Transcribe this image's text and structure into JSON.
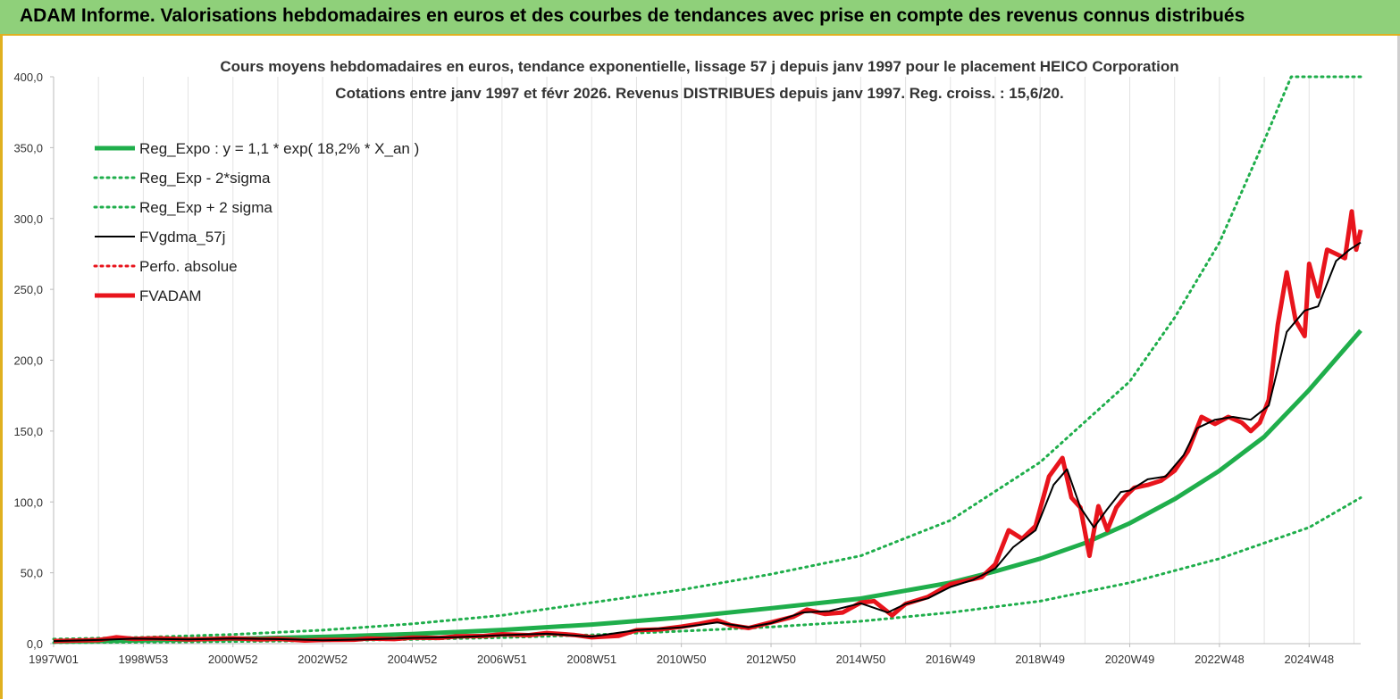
{
  "page_title": "ADAM Informe. Valorisations hebdomadaires en euros et des courbes de tendances avec prise en compte des revenus connus distribués",
  "colors": {
    "green": "#1fae4b",
    "black": "#000000",
    "red": "#e8141c",
    "header_bg": "#8fd07a"
  },
  "chart_data": {
    "type": "line",
    "title": "Cours moyens hebdomadaires en euros, tendance exponentielle, lissage 57 j depuis janv 1997 pour le placement HEICO Corporation",
    "subtitle": "Cotations entre janv 1997 et févr 2026. Revenus DISTRIBUES depuis janv 1997. Reg. croiss. : 15,6/20.",
    "xlabel": "",
    "ylabel": "",
    "x_range": [
      1997.0,
      2026.15
    ],
    "ylim": [
      0,
      400
    ],
    "y_ticks": [
      "0,0",
      "50,0",
      "100,0",
      "150,0",
      "200,0",
      "250,0",
      "300,0",
      "350,0",
      "400,0"
    ],
    "x_tick_labels": [
      {
        "label": "1997W01",
        "x": 1997.0
      },
      {
        "label": "1998W53",
        "x": 1999.0
      },
      {
        "label": "2000W52",
        "x": 2001.0
      },
      {
        "label": "2002W52",
        "x": 2003.0
      },
      {
        "label": "2004W52",
        "x": 2005.0
      },
      {
        "label": "2006W51",
        "x": 2007.0
      },
      {
        "label": "2008W51",
        "x": 2009.0
      },
      {
        "label": "2010W50",
        "x": 2011.0
      },
      {
        "label": "2012W50",
        "x": 2013.0
      },
      {
        "label": "2014W50",
        "x": 2015.0
      },
      {
        "label": "2016W49",
        "x": 2017.0
      },
      {
        "label": "2018W49",
        "x": 2019.0
      },
      {
        "label": "2020W49",
        "x": 2021.0
      },
      {
        "label": "2022W48",
        "x": 2023.0
      },
      {
        "label": "2024W48",
        "x": 2025.0
      }
    ],
    "grid": "vertical",
    "legend_position": "top-left",
    "legend": [
      {
        "name": "Reg_Expo : y = 1,1 * exp( 18,2% *  X_an )",
        "color": "#1fae4b",
        "style": "solid-thick"
      },
      {
        "name": "Reg_Exp - 2*sigma",
        "color": "#1fae4b",
        "style": "dotted"
      },
      {
        "name": "Reg_Exp + 2 sigma",
        "color": "#1fae4b",
        "style": "dotted"
      },
      {
        "name": "FVgdma_57j",
        "color": "#000000",
        "style": "solid"
      },
      {
        "name": "Perfo. absolue",
        "color": "#e8141c",
        "style": "dotted"
      },
      {
        "name": "FVADAM",
        "color": "#e8141c",
        "style": "solid-thick"
      }
    ],
    "series": [
      {
        "name": "Reg_Expo : y = 1,1 * exp( 18,2% *  X_an )",
        "x": [
          1997.0,
          1999.0,
          2001.0,
          2003.0,
          2005.0,
          2007.0,
          2009.0,
          2011.0,
          2013.0,
          2015.0,
          2017.0,
          2018.0,
          2019.0,
          2020.0,
          2021.0,
          2022.0,
          2023.0,
          2024.0,
          2025.0,
          2026.15
        ],
        "y": [
          1.5,
          2.3,
          3.4,
          4.8,
          6.8,
          9.7,
          13.5,
          18.5,
          25.0,
          31.8,
          43.0,
          51.0,
          60.0,
          71.0,
          85.0,
          102.0,
          122.0,
          146.0,
          179.0,
          221.0
        ]
      },
      {
        "name": "Reg_Exp - 2*sigma",
        "x": [
          1997.0,
          1999.0,
          2001.0,
          2003.0,
          2005.0,
          2007.0,
          2009.0,
          2011.0,
          2013.0,
          2015.0,
          2017.0,
          2019.0,
          2021.0,
          2023.0,
          2025.0,
          2026.15
        ],
        "y": [
          0.7,
          1.0,
          1.5,
          2.1,
          3.0,
          4.3,
          6.2,
          8.8,
          11.8,
          15.8,
          22.0,
          30.0,
          43.0,
          60.0,
          82.0,
          103.0
        ]
      },
      {
        "name": "Reg_Exp + 2 sigma",
        "x": [
          1997.0,
          1999.0,
          2001.0,
          2003.0,
          2005.0,
          2007.0,
          2009.0,
          2011.0,
          2013.0,
          2015.0,
          2017.0,
          2019.0,
          2021.0,
          2022.0,
          2023.0,
          2024.0,
          2024.6,
          2025.2,
          2026.15
        ],
        "y": [
          3.2,
          4.5,
          6.5,
          9.5,
          14.0,
          20.0,
          29.0,
          38.0,
          49.0,
          62.0,
          87.0,
          128.0,
          185.0,
          230.0,
          283.0,
          355.0,
          400.0,
          400.0,
          400.0
        ]
      },
      {
        "name": "FVgdma_57j",
        "x": [
          1997.0,
          1998.0,
          1998.8,
          2000.0,
          2001.0,
          2002.0,
          2003.0,
          2004.0,
          2005.0,
          2006.0,
          2007.0,
          2008.0,
          2009.0,
          2010.0,
          2011.0,
          2011.8,
          2012.5,
          2013.0,
          2013.7,
          2014.3,
          2015.0,
          2015.6,
          2016.0,
          2016.5,
          2017.0,
          2017.5,
          2018.0,
          2018.4,
          2018.9,
          2019.3,
          2019.6,
          2019.9,
          2020.2,
          2020.5,
          2020.8,
          2021.0,
          2021.4,
          2021.8,
          2022.2,
          2022.5,
          2022.9,
          2023.3,
          2023.7,
          2024.1,
          2024.5,
          2024.9,
          2025.2,
          2025.6,
          2025.9,
          2026.15
        ],
        "y": [
          1.8,
          2.6,
          3.5,
          3.0,
          3.6,
          3.2,
          2.3,
          3.0,
          4.0,
          4.6,
          6.0,
          7.0,
          5.0,
          9.5,
          11.5,
          15.0,
          11.5,
          14.5,
          22.0,
          23.0,
          28.5,
          22.0,
          28.0,
          32.0,
          40.0,
          45.0,
          53.0,
          68.0,
          80.0,
          112.0,
          123.0,
          96.0,
          82.0,
          95.0,
          107.0,
          108.0,
          116.0,
          118.0,
          133.0,
          152.0,
          158.0,
          160.0,
          158.0,
          168.0,
          220.0,
          235.0,
          238.0,
          270.0,
          278.0,
          283.0
        ]
      },
      {
        "name": "FVADAM",
        "x": [
          1997.0,
          1998.0,
          1998.4,
          1998.8,
          1999.3,
          2000.0,
          2000.6,
          2001.0,
          2001.6,
          2002.0,
          2002.6,
          2003.0,
          2003.7,
          2004.0,
          2004.6,
          2005.0,
          2005.6,
          2006.0,
          2006.6,
          2007.0,
          2007.6,
          2008.0,
          2008.6,
          2009.0,
          2009.6,
          2010.0,
          2010.5,
          2011.0,
          2011.4,
          2011.8,
          2012.1,
          2012.5,
          2013.0,
          2013.5,
          2013.8,
          2014.2,
          2014.6,
          2015.0,
          2015.3,
          2015.7,
          2016.0,
          2016.5,
          2017.0,
          2017.3,
          2017.7,
          2018.0,
          2018.3,
          2018.6,
          2018.9,
          2019.2,
          2019.5,
          2019.7,
          2019.9,
          2020.1,
          2020.3,
          2020.5,
          2020.7,
          2020.9,
          2021.1,
          2021.4,
          2021.7,
          2022.0,
          2022.3,
          2022.6,
          2022.9,
          2023.2,
          2023.5,
          2023.7,
          2023.9,
          2024.1,
          2024.3,
          2024.5,
          2024.7,
          2024.9,
          2025.0,
          2025.2,
          2025.4,
          2025.6,
          2025.8,
          2025.95,
          2026.05,
          2026.15
        ],
        "y": [
          1.8,
          2.5,
          4.5,
          3.3,
          3.8,
          3.0,
          3.4,
          3.8,
          3.0,
          3.4,
          2.2,
          2.6,
          2.8,
          3.6,
          3.2,
          4.2,
          4.0,
          5.2,
          5.4,
          6.6,
          6.0,
          7.5,
          6.2,
          4.5,
          5.5,
          9.5,
          10.0,
          12.0,
          14.0,
          16.5,
          13.0,
          11.0,
          15.0,
          19.0,
          24.0,
          21.0,
          22.0,
          29.0,
          30.0,
          20.0,
          28.0,
          33.0,
          42.0,
          44.0,
          47.0,
          56.0,
          80.0,
          74.0,
          83.0,
          118.0,
          131.0,
          103.0,
          96.0,
          62.0,
          97.0,
          80.0,
          96.0,
          104.0,
          110.0,
          112.0,
          115.0,
          122.0,
          136.0,
          160.0,
          155.0,
          160.0,
          156.0,
          150.0,
          156.0,
          172.0,
          225.0,
          262.0,
          228.0,
          217.0,
          268.0,
          245.0,
          278.0,
          275.0,
          272.0,
          305.0,
          278.0,
          292.0
        ]
      }
    ]
  }
}
